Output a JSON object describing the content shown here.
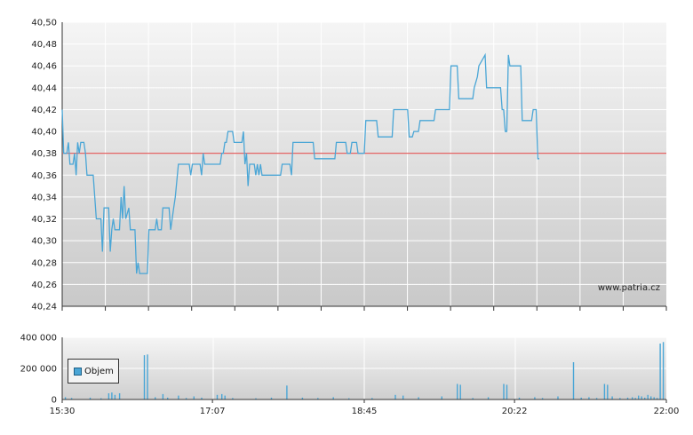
{
  "watermark": "www.patria.cz",
  "colors": {
    "price_line": "#4aa6d6",
    "reference_line": "#e05050",
    "volume_bar": "#4aa6d6"
  },
  "chart_data": [
    {
      "type": "line",
      "title": "",
      "xlabel": "",
      "ylabel": "",
      "ylim": [
        40.24,
        40.5
      ],
      "y_ticks": [
        "40,50",
        "40,48",
        "40,46",
        "40,44",
        "40,42",
        "40,40",
        "40,38",
        "40,36",
        "40,34",
        "40,32",
        "40,30",
        "40,28",
        "40,26",
        "40,24"
      ],
      "reference_value": 40.38,
      "grid": true,
      "x_time_range": [
        "15:30",
        "22:00"
      ],
      "series": [
        {
          "points": [
            [
              "15:30",
              40.42
            ],
            [
              "15:31",
              40.38
            ],
            [
              "15:33",
              40.38
            ],
            [
              "15:34",
              40.39
            ],
            [
              "15:35",
              40.37
            ],
            [
              "15:37",
              40.37
            ],
            [
              "15:38",
              40.38
            ],
            [
              "15:39",
              40.36
            ],
            [
              "15:40",
              40.39
            ],
            [
              "15:41",
              40.38
            ],
            [
              "15:42",
              40.39
            ],
            [
              "15:44",
              40.39
            ],
            [
              "15:45",
              40.38
            ],
            [
              "15:46",
              40.36
            ],
            [
              "15:50",
              40.36
            ],
            [
              "15:52",
              40.32
            ],
            [
              "15:55",
              40.32
            ],
            [
              "15:56",
              40.29
            ],
            [
              "15:57",
              40.33
            ],
            [
              "16:00",
              40.33
            ],
            [
              "16:01",
              40.29
            ],
            [
              "16:02",
              40.31
            ],
            [
              "16:03",
              40.32
            ],
            [
              "16:04",
              40.31
            ],
            [
              "16:07",
              40.31
            ],
            [
              "16:08",
              40.34
            ],
            [
              "16:09",
              40.32
            ],
            [
              "16:10",
              40.35
            ],
            [
              "16:11",
              40.32
            ],
            [
              "16:13",
              40.33
            ],
            [
              "16:14",
              40.31
            ],
            [
              "16:17",
              40.31
            ],
            [
              "16:18",
              40.27
            ],
            [
              "16:19",
              40.28
            ],
            [
              "16:20",
              40.27
            ],
            [
              "16:25",
              40.27
            ],
            [
              "16:26",
              40.31
            ],
            [
              "16:30",
              40.31
            ],
            [
              "16:31",
              40.32
            ],
            [
              "16:32",
              40.31
            ],
            [
              "16:34",
              40.31
            ],
            [
              "16:35",
              40.33
            ],
            [
              "16:39",
              40.33
            ],
            [
              "16:40",
              40.31
            ],
            [
              "16:42",
              40.33
            ],
            [
              "16:43",
              40.34
            ],
            [
              "16:45",
              40.37
            ],
            [
              "16:52",
              40.37
            ],
            [
              "16:53",
              40.36
            ],
            [
              "16:54",
              40.37
            ],
            [
              "16:59",
              40.37
            ],
            [
              "17:00",
              40.36
            ],
            [
              "17:01",
              40.38
            ],
            [
              "17:02",
              40.37
            ],
            [
              "17:12",
              40.37
            ],
            [
              "17:13",
              40.38
            ],
            [
              "17:14",
              40.38
            ],
            [
              "17:15",
              40.39
            ],
            [
              "17:16",
              40.39
            ],
            [
              "17:17",
              40.4
            ],
            [
              "17:20",
              40.4
            ],
            [
              "17:21",
              40.39
            ],
            [
              "17:26",
              40.39
            ],
            [
              "17:27",
              40.4
            ],
            [
              "17:28",
              40.37
            ],
            [
              "17:29",
              40.38
            ],
            [
              "17:30",
              40.35
            ],
            [
              "17:31",
              40.37
            ],
            [
              "17:34",
              40.37
            ],
            [
              "17:35",
              40.36
            ],
            [
              "17:36",
              40.37
            ],
            [
              "17:37",
              40.36
            ],
            [
              "17:38",
              40.37
            ],
            [
              "17:39",
              40.36
            ],
            [
              "17:51",
              40.36
            ],
            [
              "17:52",
              40.37
            ],
            [
              "17:57",
              40.37
            ],
            [
              "17:58",
              40.36
            ],
            [
              "17:59",
              40.39
            ],
            [
              "18:12",
              40.39
            ],
            [
              "18:13",
              40.375
            ],
            [
              "18:26",
              40.375
            ],
            [
              "18:27",
              40.39
            ],
            [
              "18:33",
              40.39
            ],
            [
              "18:34",
              40.38
            ],
            [
              "18:36",
              40.38
            ],
            [
              "18:37",
              40.39
            ],
            [
              "18:40",
              40.39
            ],
            [
              "18:41",
              40.38
            ],
            [
              "18:45",
              40.38
            ],
            [
              "18:46",
              40.41
            ],
            [
              "18:53",
              40.41
            ],
            [
              "18:54",
              40.395
            ],
            [
              "19:03",
              40.395
            ],
            [
              "19:04",
              40.42
            ],
            [
              "19:13",
              40.42
            ],
            [
              "19:14",
              40.395
            ],
            [
              "19:16",
              40.395
            ],
            [
              "19:17",
              40.4
            ],
            [
              "19:20",
              40.4
            ],
            [
              "19:21",
              40.41
            ],
            [
              "19:30",
              40.41
            ],
            [
              "19:31",
              40.42
            ],
            [
              "19:35",
              40.42
            ],
            [
              "19:36",
              40.42
            ],
            [
              "19:40",
              40.42
            ],
            [
              "19:41",
              40.46
            ],
            [
              "19:45",
              40.46
            ],
            [
              "19:46",
              40.43
            ],
            [
              "19:55",
              40.43
            ],
            [
              "19:56",
              40.44
            ],
            [
              "19:58",
              40.45
            ],
            [
              "19:59",
              40.46
            ],
            [
              "20:03",
              40.47
            ],
            [
              "20:04",
              40.44
            ],
            [
              "20:13",
              40.44
            ],
            [
              "20:14",
              40.42
            ],
            [
              "20:15",
              40.42
            ],
            [
              "20:16",
              40.4
            ],
            [
              "20:17",
              40.4
            ],
            [
              "20:18",
              40.47
            ],
            [
              "20:19",
              40.46
            ],
            [
              "20:26",
              40.46
            ],
            [
              "20:27",
              40.41
            ],
            [
              "20:33",
              40.41
            ],
            [
              "20:34",
              40.42
            ],
            [
              "20:36",
              40.42
            ],
            [
              "20:37",
              40.375
            ],
            [
              "20:38",
              40.375
            ]
          ]
        }
      ]
    },
    {
      "type": "bar",
      "title": "",
      "xlabel": "",
      "ylabel": "",
      "ylim": [
        0,
        400000
      ],
      "y_ticks": [
        "400 000",
        "200 000",
        "0"
      ],
      "x_ticks": [
        "15:30",
        "17:07",
        "18:45",
        "20:22",
        "22:00"
      ],
      "legend": {
        "label": "Objem",
        "position": "top-left"
      },
      "grid": true,
      "series": [
        {
          "name": "Objem",
          "bars": [
            [
              "15:32",
              15000
            ],
            [
              "15:36",
              10000
            ],
            [
              "15:48",
              12000
            ],
            [
              "15:55",
              8000
            ],
            [
              "16:00",
              40000
            ],
            [
              "16:02",
              45000
            ],
            [
              "16:04",
              30000
            ],
            [
              "16:07",
              40000
            ],
            [
              "16:23",
              285000
            ],
            [
              "16:25",
              290000
            ],
            [
              "16:30",
              15000
            ],
            [
              "16:35",
              35000
            ],
            [
              "16:38",
              12000
            ],
            [
              "16:45",
              25000
            ],
            [
              "16:50",
              10000
            ],
            [
              "16:55",
              20000
            ],
            [
              "17:00",
              12000
            ],
            [
              "17:10",
              30000
            ],
            [
              "17:13",
              35000
            ],
            [
              "17:15",
              25000
            ],
            [
              "17:20",
              10000
            ],
            [
              "17:35",
              8000
            ],
            [
              "17:45",
              12000
            ],
            [
              "17:55",
              90000
            ],
            [
              "18:05",
              12000
            ],
            [
              "18:15",
              10000
            ],
            [
              "18:25",
              15000
            ],
            [
              "18:35",
              8000
            ],
            [
              "18:50",
              10000
            ],
            [
              "19:05",
              30000
            ],
            [
              "19:10",
              25000
            ],
            [
              "19:20",
              15000
            ],
            [
              "19:35",
              20000
            ],
            [
              "19:45",
              100000
            ],
            [
              "19:47",
              95000
            ],
            [
              "19:55",
              10000
            ],
            [
              "20:05",
              15000
            ],
            [
              "20:15",
              100000
            ],
            [
              "20:17",
              95000
            ],
            [
              "20:25",
              12000
            ],
            [
              "20:35",
              15000
            ],
            [
              "20:40",
              10000
            ],
            [
              "20:50",
              20000
            ],
            [
              "21:00",
              240000
            ],
            [
              "21:05",
              12000
            ],
            [
              "21:10",
              15000
            ],
            [
              "21:15",
              10000
            ],
            [
              "21:20",
              100000
            ],
            [
              "21:22",
              95000
            ],
            [
              "21:25",
              20000
            ],
            [
              "21:30",
              10000
            ],
            [
              "21:35",
              12000
            ],
            [
              "21:38",
              15000
            ],
            [
              "21:40",
              10000
            ],
            [
              "21:42",
              25000
            ],
            [
              "21:44",
              20000
            ],
            [
              "21:46",
              12000
            ],
            [
              "21:48",
              30000
            ],
            [
              "21:50",
              20000
            ],
            [
              "21:52",
              15000
            ],
            [
              "21:54",
              10000
            ],
            [
              "21:56",
              360000
            ],
            [
              "21:58",
              370000
            ]
          ]
        }
      ]
    }
  ]
}
